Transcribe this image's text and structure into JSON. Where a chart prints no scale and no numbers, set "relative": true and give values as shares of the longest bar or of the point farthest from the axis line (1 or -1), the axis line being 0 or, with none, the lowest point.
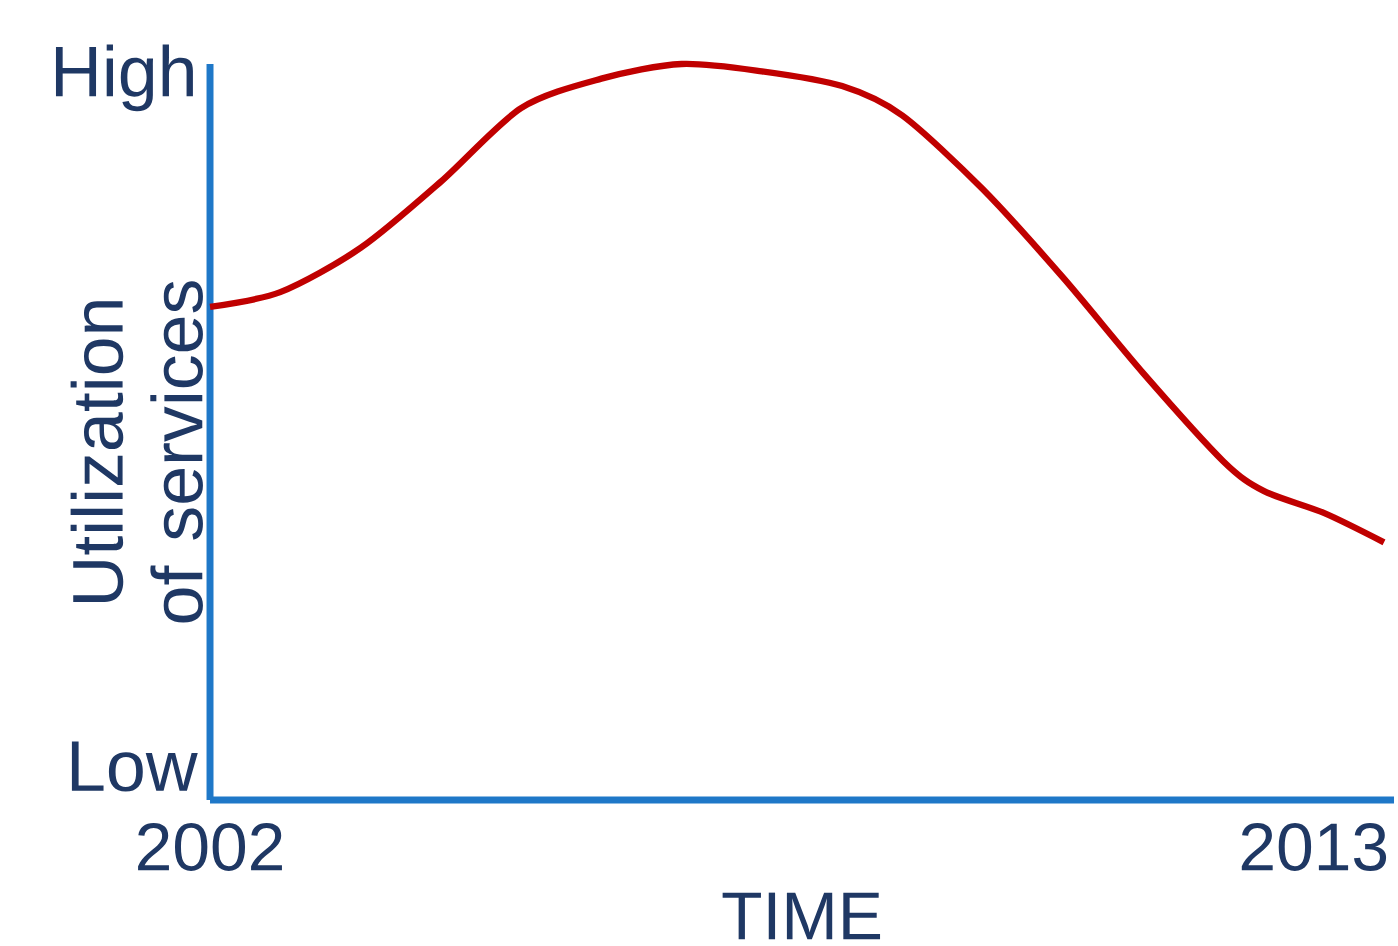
{
  "chart_data": {
    "type": "line",
    "relative": true,
    "xlabel": "TIME",
    "ylabel": "Utilization of services",
    "annotations": [
      "High",
      "Low"
    ],
    "xlim": [
      2002,
      2013.8
    ],
    "xticks": [
      2002,
      2013
    ],
    "x": [
      2002,
      2002.7,
      2003.5,
      2004.3,
      2005.1,
      2005.9,
      2006.7,
      2007.5,
      2008.3,
      2008.9,
      2009.7,
      2010.5,
      2011.3,
      2012.1,
      2012.5,
      2013.1,
      2013.7
    ],
    "values": [
      0.67,
      0.69,
      0.75,
      0.84,
      0.94,
      0.98,
      1,
      0.99,
      0.97,
      0.93,
      0.83,
      0.71,
      0.58,
      0.46,
      0.42,
      0.39,
      0.35
    ],
    "color": "#c00000"
  }
}
